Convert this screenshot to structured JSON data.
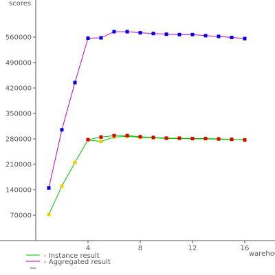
{
  "chart_data": {
    "type": "line",
    "xlabel": "warehouses",
    "ylabel": "scores",
    "xlim": [
      0,
      18
    ],
    "ylim": [
      0,
      640000
    ],
    "xticks": [
      4,
      8,
      12,
      16
    ],
    "yticks": [
      70000,
      140000,
      210000,
      280000,
      350000,
      420000,
      490000,
      560000
    ],
    "ytick_labels": [
      "70000",
      "140000",
      "210000",
      "280000",
      "350000",
      "420000",
      "490000",
      "560000"
    ],
    "xtick_labels": [
      "4",
      "8",
      "12",
      "16"
    ],
    "grid": false,
    "legend_position": "bottom-left",
    "series": [
      {
        "name": "Instance result",
        "line_color": "#00c000",
        "x": [
          1,
          2,
          3,
          4,
          5,
          6,
          7,
          8,
          9,
          10,
          11,
          12,
          13,
          14,
          15,
          16
        ],
        "y": [
          72000,
          150000,
          215000,
          277000,
          273000,
          285000,
          287000,
          284000,
          283000,
          281000,
          281000,
          280000,
          280000,
          279000,
          278000,
          278000
        ]
      },
      {
        "name": "",
        "line_color": "#00c000",
        "x": [
          4,
          5,
          6,
          7,
          8,
          9,
          10,
          11,
          12,
          13,
          14,
          15,
          16
        ],
        "y": [
          278000,
          285000,
          289000,
          289000,
          286000,
          284000,
          282000,
          282000,
          281000,
          281000,
          280000,
          279000,
          277000
        ]
      },
      {
        "name": "Aggregated result",
        "line_color": "#c000c0",
        "x": [
          1,
          2,
          3,
          4,
          5,
          6,
          7,
          8,
          9,
          10,
          11,
          12,
          13,
          14,
          15,
          16
        ],
        "y": [
          145000,
          305000,
          435000,
          557000,
          558000,
          575000,
          575000,
          572000,
          570000,
          568000,
          567000,
          567000,
          564000,
          562000,
          559000,
          556000
        ]
      }
    ]
  },
  "colors": {
    "axis": "#555555",
    "instance_line": "#00c000",
    "aggregated_line": "#c000c0",
    "marker_yellow": "#f0d000",
    "marker_red": "#e00000",
    "marker_blue": "#0000e0"
  }
}
